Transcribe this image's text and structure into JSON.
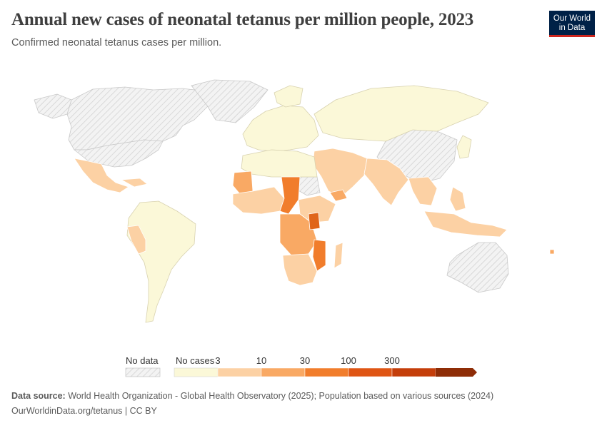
{
  "title": "Annual new cases of neonatal tetanus per million people, 2023",
  "subtitle": "Confirmed neonatal tetanus cases per million.",
  "logo": {
    "line1": "Our World",
    "line2": "in Data"
  },
  "legend": {
    "no_data_label": "No data",
    "bins": [
      {
        "label": "No cases",
        "color": "#fbf8d8"
      },
      {
        "label": "3",
        "color": "#fcd1a4"
      },
      {
        "label": "10",
        "color": "#f9a964"
      },
      {
        "label": "30",
        "color": "#f17d2c"
      },
      {
        "label": "100",
        "color": "#df5514"
      },
      {
        "label": "300",
        "color": "#c43e0a"
      },
      {
        "label": "",
        "color": "#8e2d07"
      }
    ]
  },
  "colors": {
    "no_data": "#eeeeee",
    "none": "#fbf8d8",
    "low": "#fcd1a4",
    "mid": "#f9a964",
    "high": "#f17d2c",
    "vhigh": "#e0651a"
  },
  "footer": {
    "source_label": "Data source:",
    "source_text": "World Health Organization - Global Health Observatory (2025); Population based on various sources (2024)",
    "url": "OurWorldinData.org/tetanus | CC BY"
  }
}
